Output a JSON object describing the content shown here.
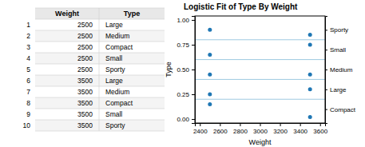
{
  "chart_data": [
    {
      "type": "table",
      "categories": [
        1,
        2,
        3,
        4,
        5,
        6,
        7,
        8,
        9,
        10
      ],
      "series": [
        {
          "name": "Weight",
          "values": [
            2500,
            2500,
            2500,
            2500,
            2500,
            3500,
            3500,
            3500,
            3500,
            3500
          ]
        },
        {
          "name": "Type",
          "values": [
            "Large",
            "Medium",
            "Compact",
            "Small",
            "Sporty",
            "Large",
            "Medium",
            "Compact",
            "Small",
            "Sporty"
          ]
        }
      ]
    },
    {
      "type": "scatter",
      "title": "Logistic Fit of Type By Weight",
      "xlabel": "Weight",
      "ylabel": "Type",
      "x": [
        2500,
        2500,
        2500,
        2500,
        2500,
        3500,
        3500,
        3500,
        3500,
        3500
      ],
      "values": [
        0.9,
        0.65,
        0.45,
        0.25,
        0.15,
        0.85,
        0.75,
        0.45,
        0.3,
        0.02
      ],
      "xlim": [
        2350,
        3650
      ],
      "ylim": [
        -0.04,
        1.04
      ],
      "xticks": [
        2400,
        2600,
        2800,
        3000,
        3200,
        3400,
        3600
      ],
      "yticks": [
        {
          "value": 0.0,
          "label": "0.00"
        },
        0.25,
        {
          "value": 0.5,
          "label": "0.50"
        },
        0.75,
        {
          "value": 1.0,
          "label": "1.00"
        }
      ],
      "y2lim": [
        -0.04,
        1.04
      ],
      "y2ticks": [
        {
          "value": 0.1,
          "label": "Compact"
        },
        {
          "value": 0.3,
          "label": "Large"
        },
        {
          "value": 0.5,
          "label": "Medium"
        },
        {
          "value": 0.7,
          "label": "Small"
        },
        {
          "value": 0.9,
          "label": "Sporty"
        }
      ],
      "hlines": [
        0.2,
        0.4,
        0.6,
        0.8
      ]
    }
  ]
}
